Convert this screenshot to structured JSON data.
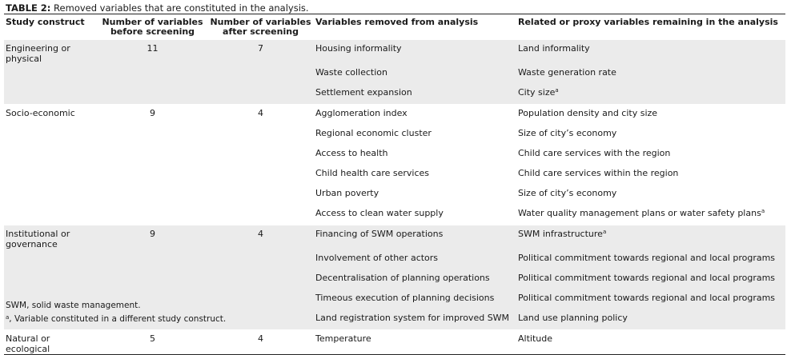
{
  "caption": {
    "label": "TABLE 2:",
    "text": " Removed variables that are constituted in the analysis."
  },
  "headers": {
    "construct": "Study construct",
    "before": "Number of variables before screening",
    "after": "Number of variables after screening",
    "removed": "Variables removed from analysis",
    "related": "Related or proxy variables remaining in the analysis"
  },
  "groups": [
    {
      "construct": "Engineering or physical",
      "before": "11",
      "after": "7",
      "shaded": true,
      "rows": [
        {
          "removed": "Housing informality",
          "related": "Land informality",
          "mark": ""
        },
        {
          "removed": "Waste collection",
          "related": "Waste generation rate",
          "mark": ""
        },
        {
          "removed": "Settlement expansion",
          "related": "City size",
          "mark": "a"
        }
      ]
    },
    {
      "construct": "Socio-economic",
      "before": "9",
      "after": "4",
      "shaded": false,
      "rows": [
        {
          "removed": "Agglomeration index",
          "related": "Population density and city size",
          "mark": ""
        },
        {
          "removed": "Regional economic cluster",
          "related": "Size of city’s economy",
          "mark": ""
        },
        {
          "removed": "Access to health",
          "related": "Child care services with the region",
          "mark": ""
        },
        {
          "removed": "Child health care services",
          "related": "Child care services within the region",
          "mark": ""
        },
        {
          "removed": "Urban poverty",
          "related": "Size of city’s economy",
          "mark": ""
        },
        {
          "removed": "Access to clean water supply",
          "related": "Water quality management plans or water safety plans",
          "mark": "a"
        }
      ]
    },
    {
      "construct": "Institutional or governance",
      "before": "9",
      "after": "4",
      "shaded": true,
      "rows": [
        {
          "removed": "Financing of SWM operations",
          "related": "SWM infrastructure",
          "mark": "a"
        },
        {
          "removed": "Involvement of other actors",
          "related": "Political commitment towards regional and local programs",
          "mark": ""
        },
        {
          "removed": "Decentralisation of planning operations",
          "related": "Political commitment towards regional and local programs",
          "mark": ""
        },
        {
          "removed": "Timeous execution of planning decisions",
          "related": "Political commitment towards regional and local programs",
          "mark": ""
        },
        {
          "removed": "Land registration system for improved SWM",
          "related": "Land use planning policy",
          "mark": ""
        }
      ]
    },
    {
      "construct": "Natural or ecological",
      "before": "5",
      "after": "4",
      "shaded": false,
      "rows": [
        {
          "removed": "Temperature",
          "related": "Altitude",
          "mark": ""
        }
      ]
    }
  ],
  "notes": {
    "abbrev": "SWM, solid waste management.",
    "mark": "a",
    "footnote": ", Variable constituted in a different study construct."
  }
}
